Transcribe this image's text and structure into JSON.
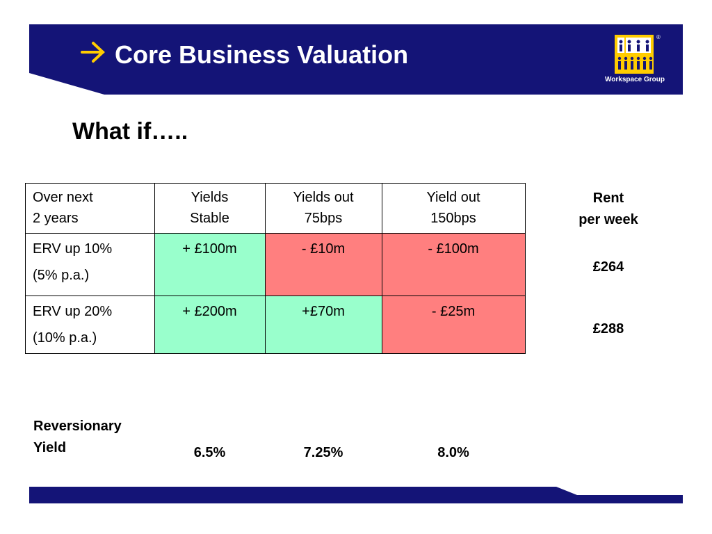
{
  "header": {
    "title": "Core Business Valuation",
    "logo": {
      "text": "Workspace Group",
      "mark": "®"
    }
  },
  "subtitle": "What if…..",
  "table": {
    "header": [
      [
        "Over next",
        "2 years"
      ],
      [
        "Yields",
        "Stable"
      ],
      [
        "Yields out",
        "75bps"
      ],
      [
        "Yield out",
        "150bps"
      ]
    ],
    "rows": [
      {
        "label": [
          "ERV up 10%",
          "(5% p.a.)"
        ],
        "cells": [
          {
            "text": "+ £100m",
            "color": "#99ffcc"
          },
          {
            "text": "- £10m",
            "color": "#ff7f7f"
          },
          {
            "text": "- £100m",
            "color": "#ff7f7f"
          }
        ]
      },
      {
        "label": [
          "ERV up 20%",
          "(10% p.a.)"
        ],
        "cells": [
          {
            "text": "+ £200m",
            "color": "#99ffcc"
          },
          {
            "text": "+£70m",
            "color": "#99ffcc"
          },
          {
            "text": "- £25m",
            "color": "#ff7f7f"
          }
        ]
      }
    ]
  },
  "rent": {
    "label": [
      "Rent",
      "per week"
    ],
    "values": [
      "£264",
      "£288"
    ]
  },
  "reversionary_yield": {
    "label": [
      "Reversionary",
      "Yield"
    ],
    "values": [
      "6.5%",
      "7.25%",
      "8.0%"
    ]
  }
}
